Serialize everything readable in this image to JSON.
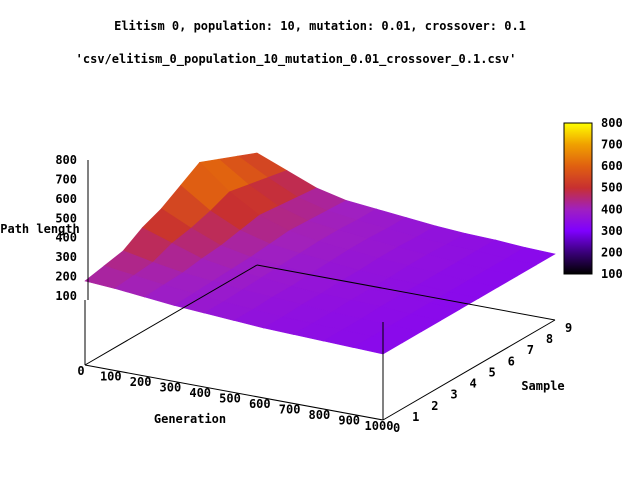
{
  "chart_data": {
    "type": "surface",
    "title": "Elitism 0, population: 10, mutation: 0.01, crossover: 0.1",
    "series_label": "'csv/elitism_0_population_10_mutation_0.01_crossover_0.1.csv'",
    "xlabel": "Generation",
    "ylabel": "Sample",
    "zlabel": "Path length",
    "xlim": [
      0,
      1000
    ],
    "ylim": [
      0,
      9
    ],
    "zlim": [
      100,
      800
    ],
    "x_ticks": [
      "0",
      "100",
      "200",
      "300",
      "400",
      "500",
      "600",
      "700",
      "800",
      "900",
      "1000"
    ],
    "y_ticks": [
      "0",
      "1",
      "2",
      "3",
      "4",
      "5",
      "6",
      "7",
      "8",
      "9"
    ],
    "z_ticks": [
      "100",
      "200",
      "300",
      "400",
      "500",
      "600",
      "700",
      "800"
    ],
    "colorbar_ticks": [
      "100",
      "200",
      "300",
      "400",
      "500",
      "600",
      "700",
      "800"
    ],
    "colormap": [
      "#000000",
      "#3a007a",
      "#7f00ff",
      "#a020c0",
      "#c83030",
      "#e06010",
      "#f0a000",
      "#ffff00"
    ],
    "grid_x": [
      0,
      100,
      200,
      300,
      400,
      500,
      600,
      700,
      800,
      900,
      1000
    ],
    "grid_y": [
      0,
      1,
      2,
      3,
      4,
      5,
      6,
      7,
      8,
      9
    ],
    "z_values": [
      [
        420,
        410,
        395,
        380,
        370,
        360,
        350,
        345,
        340,
        335,
        330
      ],
      [
        440,
        420,
        400,
        385,
        370,
        360,
        350,
        345,
        340,
        335,
        330
      ],
      [
        460,
        430,
        405,
        390,
        375,
        365,
        355,
        345,
        340,
        335,
        330
      ],
      [
        520,
        470,
        420,
        395,
        380,
        365,
        355,
        350,
        345,
        335,
        330
      ],
      [
        560,
        490,
        430,
        400,
        385,
        370,
        360,
        350,
        345,
        335,
        330
      ],
      [
        620,
        520,
        450,
        410,
        390,
        375,
        360,
        350,
        345,
        335,
        330
      ],
      [
        680,
        560,
        470,
        420,
        395,
        380,
        365,
        355,
        345,
        335,
        330
      ],
      [
        640,
        540,
        460,
        415,
        395,
        380,
        365,
        355,
        345,
        335,
        330
      ],
      [
        600,
        520,
        450,
        410,
        390,
        375,
        360,
        350,
        345,
        335,
        330
      ],
      [
        560,
        500,
        440,
        405,
        390,
        375,
        360,
        350,
        345,
        335,
        330
      ]
    ]
  }
}
